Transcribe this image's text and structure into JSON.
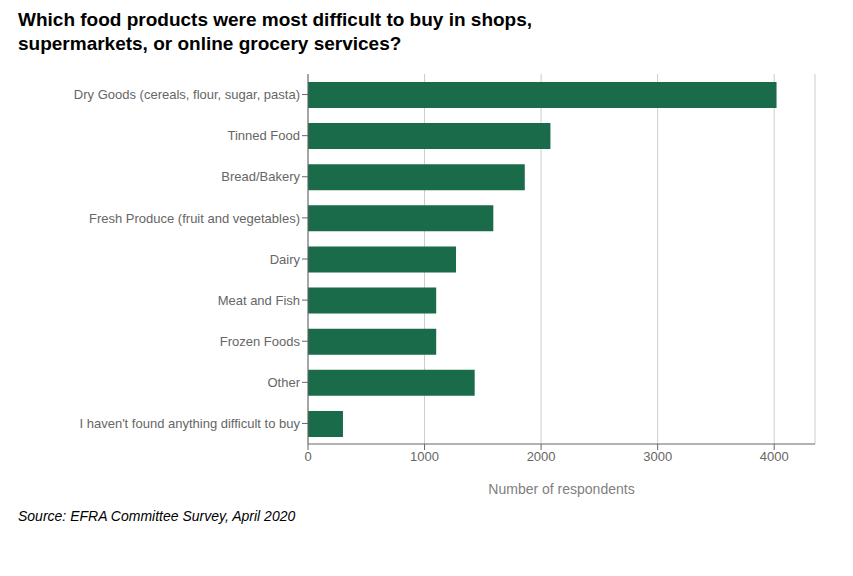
{
  "chart_data": {
    "type": "bar",
    "orientation": "horizontal",
    "title": "Which food products were most difficult to buy in shops,\nsupermarkets, or online grocery services?",
    "categories": [
      "I haven't found anything difficult to buy",
      "Other",
      "Frozen Foods",
      "Meat and Fish",
      "Dairy",
      "Fresh Produce (fruit and vegetables)",
      "Bread/Bakery",
      "Tinned Food",
      "Dry Goods (cereals, flour, sugar, pasta)"
    ],
    "values": [
      300,
      1430,
      1100,
      1100,
      1270,
      1590,
      1860,
      2080,
      4020
    ],
    "color": "#1a6b4a",
    "xlabel": "Number of respondents",
    "xlim": [
      0,
      4350
    ],
    "xticks": [
      0,
      1000,
      2000,
      3000,
      4000
    ],
    "grid": true,
    "annotations": [
      "Source: EFRA Committee Survey, April 2020"
    ]
  }
}
